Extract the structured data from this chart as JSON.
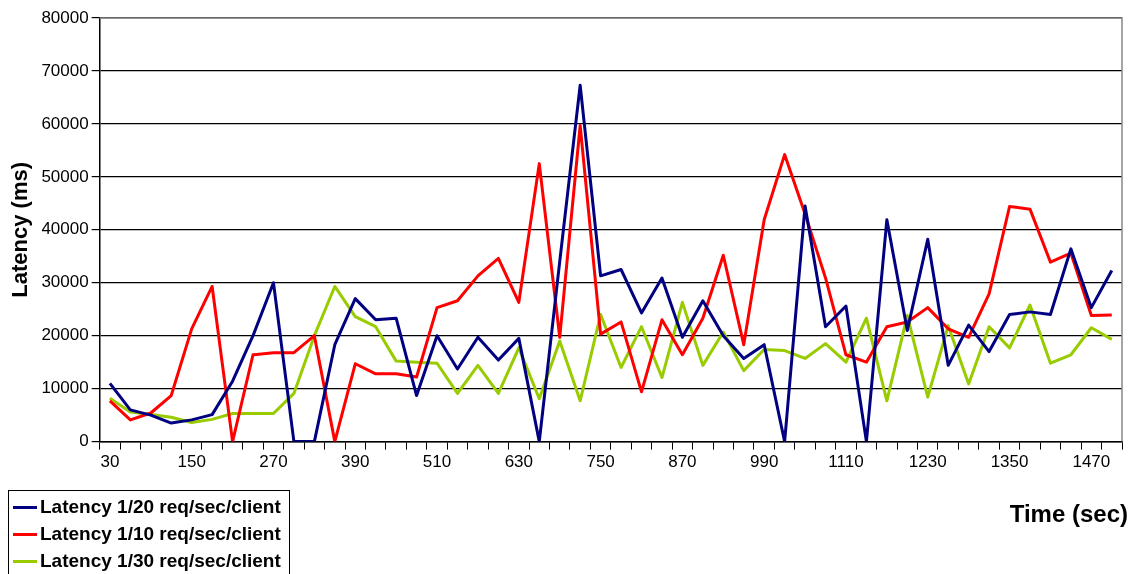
{
  "chart_data": {
    "type": "line",
    "xlabel": "Time (sec)",
    "ylabel": "Latency (ms)",
    "categories": [
      "30",
      null,
      null,
      null,
      "150",
      null,
      null,
      null,
      "270",
      null,
      null,
      null,
      "390",
      null,
      null,
      null,
      "510",
      null,
      null,
      null,
      "630",
      null,
      null,
      null,
      "750",
      null,
      null,
      null,
      "870",
      null,
      null,
      null,
      "990",
      null,
      null,
      null,
      "1110",
      null,
      null,
      null,
      "1230",
      null,
      null,
      null,
      "1350",
      null,
      null,
      null,
      "1470",
      null
    ],
    "series": [
      {
        "name": "Latency 1/20 req/sec/client",
        "color": "#000080",
        "values": [
          11000,
          6000,
          5000,
          3500,
          4100,
          5100,
          11400,
          20000,
          30000,
          0,
          0,
          18300,
          27000,
          23000,
          23300,
          8700,
          20000,
          13700,
          19700,
          15400,
          19500,
          0,
          34000,
          67300,
          31300,
          32500,
          24300,
          30900,
          19700,
          26600,
          20000,
          15700,
          18300,
          0,
          44500,
          21700,
          25600,
          0,
          41900,
          21000,
          38200,
          14400,
          22000,
          17000,
          24000,
          24500,
          24000,
          36400,
          25300,
          32300
        ]
      },
      {
        "name": "Latency 1/10 req/sec/client",
        "color": "#ff0000",
        "values": [
          7700,
          4100,
          5400,
          8700,
          21300,
          29300,
          0,
          16400,
          16800,
          16800,
          20000,
          0,
          14700,
          12800,
          12800,
          12200,
          25300,
          26600,
          31300,
          34600,
          26300,
          52500,
          19700,
          59700,
          20300,
          22600,
          9400,
          23000,
          16400,
          23300,
          35200,
          18300,
          41900,
          54200,
          43000,
          30900,
          16400,
          15000,
          21700,
          22600,
          25300,
          21300,
          19700,
          27900,
          44400,
          43900,
          33900,
          35600,
          23800,
          23900
        ]
      },
      {
        "name": "Latency 1/30 req/sec/client",
        "color": "#99cc00",
        "values": [
          8200,
          5600,
          5100,
          4600,
          3600,
          4200,
          5300,
          5300,
          5300,
          9100,
          20000,
          29300,
          23600,
          21700,
          15200,
          15000,
          14800,
          9100,
          14400,
          9100,
          17700,
          8100,
          19000,
          7700,
          24000,
          14000,
          21700,
          12100,
          26300,
          14400,
          20700,
          13400,
          17400,
          17200,
          15700,
          18500,
          15000,
          23300,
          7700,
          23800,
          8400,
          21900,
          10900,
          21700,
          17700,
          25800,
          14800,
          16400,
          21500,
          19300
        ]
      }
    ],
    "ylim": [
      0,
      80000
    ],
    "yticks": [
      0,
      10000,
      20000,
      30000,
      40000,
      50000,
      60000,
      70000,
      80000
    ],
    "grid": "y",
    "legend": "bottom left",
    "marker": "none",
    "line_style": "solid"
  }
}
